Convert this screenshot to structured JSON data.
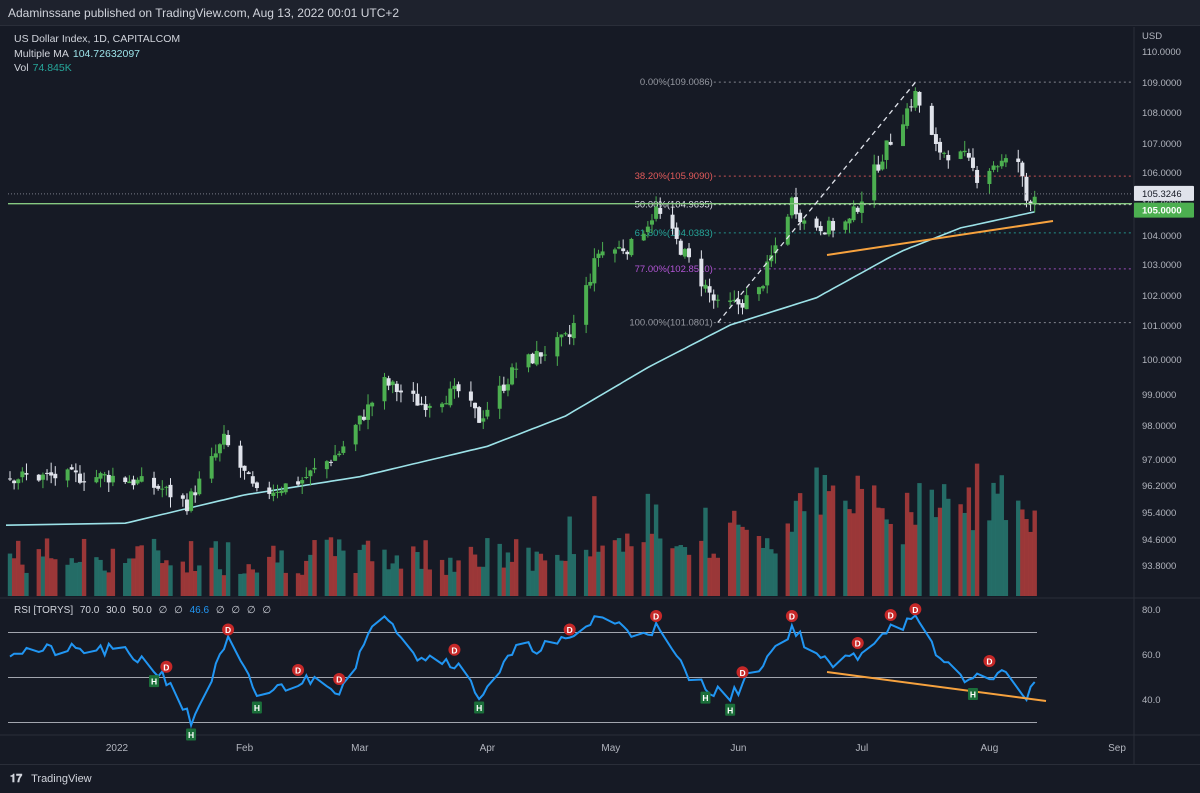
{
  "header": {
    "text": "Adaminssane published on TradingView.com, Aug 13, 2022 00:01 UTC+2"
  },
  "legend": {
    "symbol": "US Dollar Index, 1D, CAPITALCOM",
    "ma_label": "Multiple MA",
    "ma_value": "104.72632097",
    "vol_label": "Vol",
    "vol_value": "74.845K"
  },
  "rsi_legend": {
    "label": "RSI [TORYS]",
    "params": [
      "70.0",
      "30.0",
      "50.0",
      "∅",
      "∅"
    ],
    "value": "46.6",
    "rest": [
      "∅",
      "∅",
      "∅",
      "∅"
    ]
  },
  "footer": {
    "logo": "𝟏𝟕",
    "brand": "TradingView"
  },
  "colors": {
    "bull": "#4caf50",
    "bear": "#e0e3eb",
    "ma": "#9ce2e8",
    "vol_up": "#26756e",
    "vol_down": "#a83b3b",
    "rsi": "#2196f3",
    "trend": "#f7a23e",
    "level": "#86c981",
    "fib_red": "#e35b5b"
  },
  "chart_data": {
    "type": "candlestick",
    "symbol": "US Dollar Index",
    "interval": "1D",
    "price_axis_title": "USD",
    "price_ticks": [
      "110.0000",
      "109.0000",
      "108.0000",
      "107.0000",
      "106.0000",
      "105.0000",
      "104.0000",
      "103.0000",
      "102.0000",
      "101.0000",
      "100.0000",
      "99.0000",
      "98.0000",
      "97.0000",
      "96.2000",
      "95.4000",
      "94.6000",
      "93.8000"
    ],
    "time_ticks": [
      "2022",
      "Feb",
      "Mar",
      "Apr",
      "May",
      "Jun",
      "Jul",
      "Aug",
      "Sep"
    ],
    "last_price": "105.3246",
    "horizontal_level": "105.0000",
    "fib_levels": [
      {
        "label": "0.00%(109.0086)",
        "price": 109.0086
      },
      {
        "label": "38.20%(105.9090)",
        "price": 105.909
      },
      {
        "label": "50.00%(104.9695)",
        "price": 104.9695
      },
      {
        "label": "61.80%(104.0383)",
        "price": 104.0383
      },
      {
        "label": "77.00%(102.8510)",
        "price": 102.851
      },
      {
        "label": "100.00%(101.0801)",
        "price": 101.0801
      }
    ],
    "price_anchors": [
      [
        "2022-01-01",
        96.0
      ],
      [
        "2022-01-12",
        95.6
      ],
      [
        "2022-01-18",
        95.1
      ],
      [
        "2022-01-27",
        97.2
      ],
      [
        "2022-02-04",
        95.4
      ],
      [
        "2022-02-15",
        95.9
      ],
      [
        "2022-02-24",
        96.8
      ],
      [
        "2022-03-07",
        99.1
      ],
      [
        "2022-03-16",
        98.4
      ],
      [
        "2022-03-25",
        98.8
      ],
      [
        "2022-03-30",
        97.9
      ],
      [
        "2022-04-08",
        99.6
      ],
      [
        "2022-04-21",
        100.6
      ],
      [
        "2022-04-28",
        103.4
      ],
      [
        "2022-05-06",
        103.6
      ],
      [
        "2022-05-12",
        104.8
      ],
      [
        "2022-05-20",
        103.1
      ],
      [
        "2022-05-27",
        101.6
      ],
      [
        "2022-06-01",
        101.7
      ],
      [
        "2022-06-06",
        102.1
      ],
      [
        "2022-06-14",
        105.1
      ],
      [
        "2022-06-17",
        104.4
      ],
      [
        "2022-06-23",
        104.2
      ],
      [
        "2022-06-28",
        104.4
      ],
      [
        "2022-07-06",
        106.6
      ],
      [
        "2022-07-14",
        108.6
      ],
      [
        "2022-07-19",
        106.8
      ],
      [
        "2022-07-26",
        106.5
      ],
      [
        "2022-07-29",
        105.9
      ],
      [
        "2022-08-02",
        106.3
      ],
      [
        "2022-08-08",
        106.4
      ],
      [
        "2022-08-10",
        105.1
      ],
      [
        "2022-08-12",
        105.3
      ]
    ],
    "moving_average": [
      [
        "2022-01-01",
        94.4
      ],
      [
        "2022-02-01",
        95.4
      ],
      [
        "2022-03-01",
        96.0
      ],
      [
        "2022-04-01",
        97.0
      ],
      [
        "2022-04-20",
        98.0
      ],
      [
        "2022-05-10",
        99.6
      ],
      [
        "2022-05-30",
        101.0
      ],
      [
        "2022-06-20",
        101.9
      ],
      [
        "2022-07-10",
        103.4
      ],
      [
        "2022-07-25",
        104.2
      ],
      [
        "2022-08-12",
        104.73
      ]
    ],
    "rsi": {
      "levels": [
        70,
        50,
        30
      ],
      "axis_ticks": [
        "80.0",
        "60.0",
        "40.0"
      ],
      "last": 46.6,
      "anchors": [
        [
          "2022-01-01",
          62
        ],
        [
          "2022-01-07",
          58
        ],
        [
          "2022-01-14",
          48
        ],
        [
          "2022-01-19",
          30
        ],
        [
          "2022-01-28",
          66
        ],
        [
          "2022-02-04",
          42
        ],
        [
          "2022-02-14",
          48
        ],
        [
          "2022-02-20",
          50
        ],
        [
          "2022-02-24",
          44
        ],
        [
          "2022-03-07",
          80
        ],
        [
          "2022-03-15",
          60
        ],
        [
          "2022-03-24",
          57
        ],
        [
          "2022-03-30",
          42
        ],
        [
          "2022-04-08",
          62
        ],
        [
          "2022-04-21",
          66
        ],
        [
          "2022-04-28",
          78
        ],
        [
          "2022-05-06",
          70
        ],
        [
          "2022-05-12",
          72
        ],
        [
          "2022-05-20",
          50
        ],
        [
          "2022-05-30",
          41
        ],
        [
          "2022-06-06",
          55
        ],
        [
          "2022-06-14",
          72
        ],
        [
          "2022-06-23",
          55
        ],
        [
          "2022-06-30",
          60
        ],
        [
          "2022-07-07",
          72
        ],
        [
          "2022-07-14",
          75
        ],
        [
          "2022-07-20",
          58
        ],
        [
          "2022-07-28",
          48
        ],
        [
          "2022-08-01",
          52
        ],
        [
          "2022-08-05",
          51
        ],
        [
          "2022-08-10",
          42
        ],
        [
          "2022-08-12",
          46.6
        ]
      ],
      "markers": [
        {
          "date": "2022-01-10",
          "type": "H"
        },
        {
          "date": "2022-01-13",
          "type": "D"
        },
        {
          "date": "2022-01-19",
          "type": "H"
        },
        {
          "date": "2022-01-28",
          "type": "D"
        },
        {
          "date": "2022-02-04",
          "type": "H"
        },
        {
          "date": "2022-02-14",
          "type": "D"
        },
        {
          "date": "2022-02-24",
          "type": "D"
        },
        {
          "date": "2022-03-24",
          "type": "D"
        },
        {
          "date": "2022-03-30",
          "type": "H"
        },
        {
          "date": "2022-04-21",
          "type": "D"
        },
        {
          "date": "2022-05-12",
          "type": "D"
        },
        {
          "date": "2022-05-24",
          "type": "H"
        },
        {
          "date": "2022-05-30",
          "type": "H"
        },
        {
          "date": "2022-06-02",
          "type": "D"
        },
        {
          "date": "2022-06-14",
          "type": "D"
        },
        {
          "date": "2022-06-30",
          "type": "D"
        },
        {
          "date": "2022-07-08",
          "type": "D"
        },
        {
          "date": "2022-07-14",
          "type": "D"
        },
        {
          "date": "2022-07-28",
          "type": "H"
        },
        {
          "date": "2022-08-01",
          "type": "D"
        }
      ]
    }
  }
}
